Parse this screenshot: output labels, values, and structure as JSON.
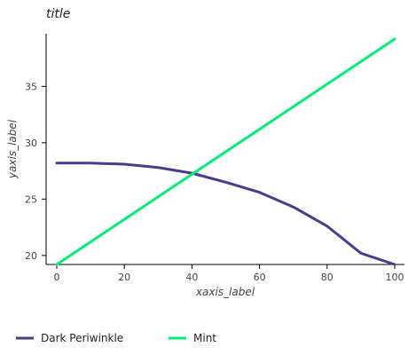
{
  "chart_data": {
    "type": "line",
    "title": "title",
    "xlabel": "xaxis_label",
    "ylabel": "yaxis_label",
    "x": [
      0,
      10,
      20,
      30,
      40,
      50,
      60,
      70,
      80,
      90,
      100
    ],
    "xlim": [
      0,
      100
    ],
    "ylim": [
      19.2,
      39.2
    ],
    "xticks": [
      0,
      20,
      40,
      60,
      80,
      100
    ],
    "yticks": [
      20,
      25,
      30,
      35
    ],
    "grid": false,
    "legend_position": "bottom",
    "series": [
      {
        "name": "Dark Periwinkle",
        "color": "#483d8b",
        "values": [
          28.2,
          28.2,
          28.1,
          27.8,
          27.3,
          26.5,
          25.6,
          24.3,
          22.6,
          20.2,
          19.2
        ]
      },
      {
        "name": "Mint",
        "color": "#00ee76",
        "values": [
          19.2,
          21.2,
          23.2,
          25.2,
          27.2,
          29.2,
          31.2,
          33.2,
          35.2,
          37.2,
          39.2
        ]
      }
    ]
  }
}
